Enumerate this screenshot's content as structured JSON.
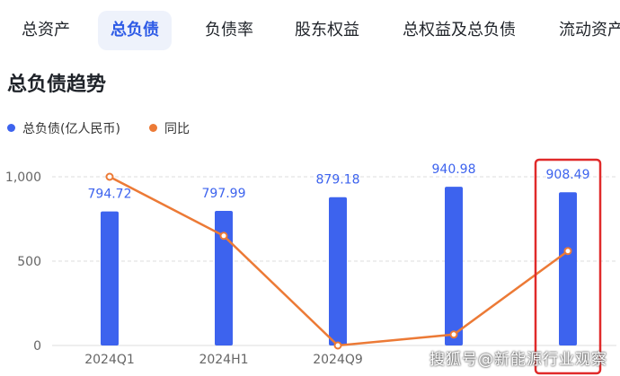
{
  "tabs": [
    {
      "label": "总资产",
      "active": false
    },
    {
      "label": "总负债",
      "active": true
    },
    {
      "label": "负债率",
      "active": false
    },
    {
      "label": "股东权益",
      "active": false
    },
    {
      "label": "总权益及总负债",
      "active": false
    },
    {
      "label": "流动资产",
      "active": false
    }
  ],
  "section_title": "总负债趋势",
  "legend": [
    {
      "label": "总负债(亿人民币)",
      "color": "#3d63ee"
    },
    {
      "label": "同比",
      "color": "#ec7a36"
    }
  ],
  "colors": {
    "bar": "#3d63ee",
    "line": "#ec7a36",
    "highlight_box": "#e02a2a",
    "grid": "#dcdcdc",
    "value_label": "#3d63ee"
  },
  "chart_data": {
    "type": "bar",
    "categories": [
      "2024Q1",
      "2024H1",
      "2024Q9",
      "",
      ""
    ],
    "series": [
      {
        "name": "总负债(亿人民币)",
        "type": "bar",
        "values": [
          794.72,
          797.99,
          879.18,
          940.98,
          908.49
        ]
      },
      {
        "name": "同比",
        "type": "line",
        "values": [
          1000,
          650,
          0,
          65,
          560
        ]
      }
    ],
    "value_labels": [
      "794.72",
      "797.99",
      "879.18",
      "940.98",
      "908.49"
    ],
    "y_ticks": [
      "1,000",
      "500",
      "0"
    ],
    "ylim": [
      0,
      1000
    ],
    "highlighted_index": 4,
    "grid": true,
    "legend_position": "top-left"
  },
  "watermark": "搜狐号@新能源行业观察"
}
